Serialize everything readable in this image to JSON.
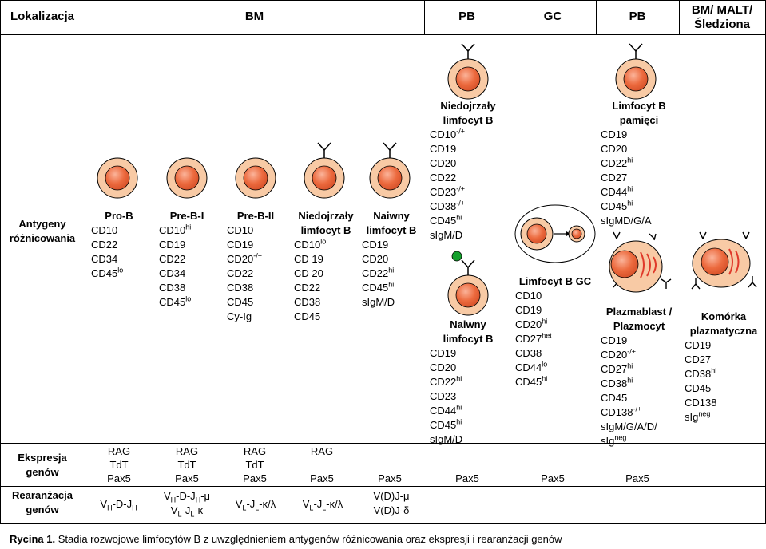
{
  "header": {
    "lokalizacja": "Lokalizacja",
    "bm": "BM",
    "pb1": "PB",
    "gc": "GC",
    "pb2": "PB",
    "bm_malt_l1": "BM/ MALT/",
    "bm_malt_l2": "Śledziona"
  },
  "row_labels": {
    "antygeny_l1": "Antygeny",
    "antygeny_l2": "różnicowania",
    "ekspresja_l1": "Ekspresja",
    "ekspresja_l2": "genów",
    "rearanzacja_l1": "Rearanżacja",
    "rearanzacja_l2": "genów"
  },
  "stages": {
    "prob": {
      "name": "Pro-B",
      "markers": [
        {
          "t": "CD10",
          "s": ""
        },
        {
          "t": "CD22",
          "s": ""
        },
        {
          "t": "CD34",
          "s": ""
        },
        {
          "t": "CD45",
          "s": "lo"
        }
      ]
    },
    "preb1": {
      "name": "Pre-B-I",
      "markers": [
        {
          "t": "CD10",
          "s": "hi"
        },
        {
          "t": "CD19",
          "s": ""
        },
        {
          "t": "CD22",
          "s": ""
        },
        {
          "t": "CD34",
          "s": ""
        },
        {
          "t": "CD38",
          "s": ""
        },
        {
          "t": "CD45",
          "s": "lo"
        }
      ]
    },
    "preb2": {
      "name": "Pre-B-II",
      "markers": [
        {
          "t": "CD10",
          "s": ""
        },
        {
          "t": "CD19",
          "s": ""
        },
        {
          "t": "CD20",
          "s": "-/+"
        },
        {
          "t": "CD22",
          "s": ""
        },
        {
          "t": "CD38",
          "s": ""
        },
        {
          "t": "CD45",
          "s": ""
        },
        {
          "t": "Cy-Ig",
          "s": ""
        }
      ]
    },
    "immature_bm": {
      "name_l1": "Niedojrzały",
      "name_l2": "limfocyt B",
      "markers": [
        {
          "t": "CD10",
          "s": "lo"
        },
        {
          "t": "CD 19",
          "s": ""
        },
        {
          "t": "CD 20",
          "s": ""
        },
        {
          "t": "CD22",
          "s": ""
        },
        {
          "t": "CD38",
          "s": ""
        },
        {
          "t": "CD45",
          "s": ""
        }
      ]
    },
    "naive_bm": {
      "name_l1": "Naiwny",
      "name_l2": "limfocyt B",
      "markers": [
        {
          "t": "CD19",
          "s": ""
        },
        {
          "t": "CD20",
          "s": ""
        },
        {
          "t": "CD22",
          "s": "hi"
        },
        {
          "t": "CD45",
          "s": "hi"
        },
        {
          "t": "sIgM/D",
          "s": ""
        }
      ]
    },
    "immature_pb": {
      "name_l1": "Niedojrzały",
      "name_l2": "limfocyt B",
      "markers": [
        {
          "t": "CD10",
          "s": "-/+"
        },
        {
          "t": "CD19",
          "s": ""
        },
        {
          "t": "CD20",
          "s": ""
        },
        {
          "t": "CD22",
          "s": ""
        },
        {
          "t": "CD23",
          "s": "-/+"
        },
        {
          "t": "CD38",
          "s": "-/+"
        },
        {
          "t": "CD45",
          "s": "hi"
        },
        {
          "t": "sIgM/D",
          "s": ""
        }
      ]
    },
    "naive_pb": {
      "name_l1": "Naiwny",
      "name_l2": "limfocyt B",
      "markers": [
        {
          "t": "CD19",
          "s": ""
        },
        {
          "t": "CD20",
          "s": ""
        },
        {
          "t": "CD22",
          "s": "hi"
        },
        {
          "t": "CD23",
          "s": ""
        },
        {
          "t": "CD44",
          "s": "hi"
        },
        {
          "t": "CD45",
          "s": "hi"
        },
        {
          "t": "sIgM/D",
          "s": ""
        }
      ]
    },
    "gc": {
      "name": "Limfocyt B GC",
      "markers": [
        {
          "t": "CD10",
          "s": ""
        },
        {
          "t": "CD19",
          "s": ""
        },
        {
          "t": "CD20",
          "s": "hi"
        },
        {
          "t": "CD27",
          "s": "het"
        },
        {
          "t": "CD38",
          "s": ""
        },
        {
          "t": "CD44",
          "s": "lo"
        },
        {
          "t": "CD45",
          "s": "hi"
        }
      ]
    },
    "memory": {
      "name_l1": "Limfocyt B",
      "name_l2": "pamięci",
      "markers": [
        {
          "t": "CD19",
          "s": ""
        },
        {
          "t": "CD20",
          "s": ""
        },
        {
          "t": "CD22",
          "s": "hi"
        },
        {
          "t": "CD27",
          "s": ""
        },
        {
          "t": "CD44",
          "s": "hi"
        },
        {
          "t": "CD45",
          "s": "hi"
        },
        {
          "t": "sIgMD/G/A",
          "s": ""
        }
      ]
    },
    "plasmablast": {
      "name_l1": "Plazmablast /",
      "name_l2": "Plazmocyt",
      "markers": [
        {
          "t": "CD19",
          "s": ""
        },
        {
          "t": "CD20",
          "s": "-/+"
        },
        {
          "t": "CD27",
          "s": "hi"
        },
        {
          "t": "CD38",
          "s": "hi"
        },
        {
          "t": "CD45",
          "s": ""
        },
        {
          "t": "CD138",
          "s": "-/+"
        },
        {
          "t": "sIgM/G/A/D/",
          "s": ""
        },
        {
          "t": "sIg",
          "s": "neg"
        }
      ]
    },
    "plasma": {
      "name_l1": "Komórka",
      "name_l2": "plazmatyczna",
      "markers": [
        {
          "t": "CD19",
          "s": ""
        },
        {
          "t": "CD27",
          "s": ""
        },
        {
          "t": "CD38",
          "s": "hi"
        },
        {
          "t": "CD45",
          "s": ""
        },
        {
          "t": "CD138",
          "s": ""
        },
        {
          "t": "sIg",
          "s": "neg"
        }
      ]
    }
  },
  "expression": {
    "rag": "RAG",
    "tdt": "TdT",
    "pax5": "Pax5"
  },
  "rearrangement": {
    "vh": "V",
    "vh_sub": "H",
    "d": "-D-J",
    "dh_sub": "H",
    "mu_suffix": "-μ",
    "vl": "V",
    "vl_sub": "L",
    "jl": "-J",
    "jl_sub": "L",
    "kappa": "-κ",
    "kappa_lambda": "-κ/λ",
    "vdj_mu": "V(D)J-μ",
    "vdj_delta": "V(D)J-δ"
  },
  "caption": {
    "label": "Rycina 1.",
    "text": " Stadia rozwojowe limfocytów B z uwzględnieniem antygenów różnicowania oraz ekspresji i rearanżacji genów"
  },
  "colors": {
    "cell_outer": "#f8caa5",
    "cell_nucleus": "#ec6a3e",
    "cell_border": "#000000",
    "plasma_streak": "#e0392a",
    "green_dot": "#14a02c"
  }
}
